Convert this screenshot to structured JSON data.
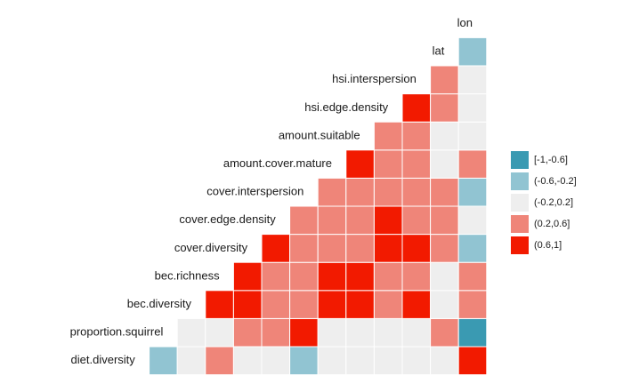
{
  "chart_data": {
    "type": "heatmap",
    "variables": [
      "diet.diversity",
      "proportion.squirrel",
      "bec.diversity",
      "bec.richness",
      "cover.diversity",
      "cover.edge.density",
      "cover.interspersion",
      "amount.cover.mature",
      "amount.suitable",
      "hsi.edge.density",
      "hsi.interspersion",
      "lat",
      "lon"
    ],
    "legend": [
      {
        "label": "[-1,-0.6]",
        "color": "#3a9ab2"
      },
      {
        "label": "(-0.6,-0.2]",
        "color": "#91c4d2"
      },
      {
        "label": "(-0.2,0.2]",
        "color": "#eeeeee"
      },
      {
        "label": "(0.2,0.6]",
        "color": "#ef8579"
      },
      {
        "label": "(0.6,1]",
        "color": "#f21a00"
      }
    ],
    "rows": [
      {
        "cells": [
          "(-0.6,-0.2]",
          "(-0.2,0.2]",
          "(0.2,0.6]",
          "(-0.2,0.2]",
          "(-0.2,0.2]",
          "(-0.6,-0.2]",
          "(-0.2,0.2]",
          "(-0.2,0.2]",
          "(-0.2,0.2]",
          "(-0.2,0.2]",
          "(-0.2,0.2]",
          "(0.6,1]"
        ]
      },
      {
        "cells": [
          "(-0.2,0.2]",
          "(-0.2,0.2]",
          "(0.2,0.6]",
          "(0.2,0.6]",
          "(0.6,1]",
          "(-0.2,0.2]",
          "(-0.2,0.2]",
          "(-0.2,0.2]",
          "(-0.2,0.2]",
          "(0.2,0.6]",
          "[-1,-0.6]"
        ]
      },
      {
        "cells": [
          "(0.6,1]",
          "(0.6,1]",
          "(0.2,0.6]",
          "(0.2,0.6]",
          "(0.6,1]",
          "(0.6,1]",
          "(0.2,0.6]",
          "(0.6,1]",
          "(-0.2,0.2]",
          "(0.2,0.6]"
        ]
      },
      {
        "cells": [
          "(0.6,1]",
          "(0.2,0.6]",
          "(0.2,0.6]",
          "(0.6,1]",
          "(0.6,1]",
          "(0.2,0.6]",
          "(0.2,0.6]",
          "(-0.2,0.2]",
          "(0.2,0.6]"
        ]
      },
      {
        "cells": [
          "(0.6,1]",
          "(0.2,0.6]",
          "(0.2,0.6]",
          "(0.2,0.6]",
          "(0.6,1]",
          "(0.6,1]",
          "(0.2,0.6]",
          "(-0.6,-0.2]"
        ]
      },
      {
        "cells": [
          "(0.2,0.6]",
          "(0.2,0.6]",
          "(0.2,0.6]",
          "(0.6,1]",
          "(0.2,0.6]",
          "(0.2,0.6]",
          "(-0.2,0.2]"
        ]
      },
      {
        "cells": [
          "(0.2,0.6]",
          "(0.2,0.6]",
          "(0.2,0.6]",
          "(0.2,0.6]",
          "(0.2,0.6]",
          "(-0.6,-0.2]"
        ]
      },
      {
        "cells": [
          "(0.6,1]",
          "(0.2,0.6]",
          "(0.2,0.6]",
          "(-0.2,0.2]",
          "(0.2,0.6]"
        ]
      },
      {
        "cells": [
          "(0.2,0.6]",
          "(0.2,0.6]",
          "(-0.2,0.2]",
          "(-0.2,0.2]"
        ]
      },
      {
        "cells": [
          "(0.6,1]",
          "(0.2,0.6]",
          "(-0.2,0.2]"
        ]
      },
      {
        "cells": [
          "(0.2,0.6]",
          "(-0.2,0.2]"
        ]
      },
      {
        "cells": [
          "(-0.6,-0.2]"
        ]
      },
      {
        "cells": []
      }
    ]
  }
}
